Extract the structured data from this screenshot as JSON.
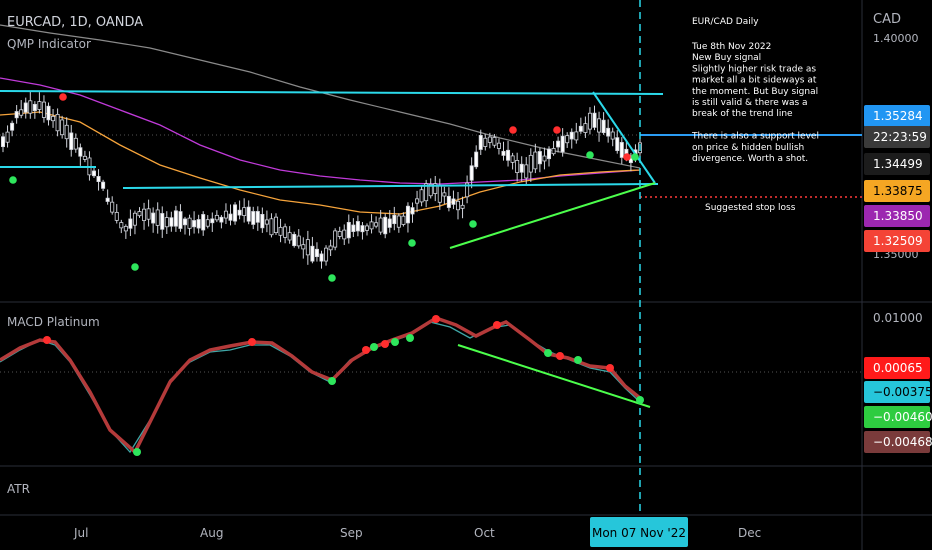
{
  "header": {
    "symbol": "EURCAD, 1D, OANDA",
    "indicator": "QMP Indicator"
  },
  "currency": "CAD",
  "colors": {
    "background": "#000000",
    "cyan_line": "#2bd9ea",
    "green_trend": "#4cff4c",
    "orange_ma": "#f5a33b",
    "purple_ma": "#c03ad9",
    "gray_ma": "#8a8a8a",
    "macd_red": "#b43a3a",
    "macd_teal": "#3fa6a6",
    "signal_up": "#2ee65c",
    "signal_down": "#ff2e2e",
    "stop_line": "#ff3b3b"
  },
  "chart_data": {
    "type": "candlestick",
    "title": "EURCAD, 1D, OANDA",
    "x_ticks": [
      "Jul",
      "Aug",
      "Sep",
      "Oct",
      "Dec"
    ],
    "x_highlight": "Mon 07 Nov '22",
    "y_ticks_price": [
      "1.40000",
      "1.35000"
    ],
    "price_labels": [
      {
        "value": "1.35284",
        "color": "#2196f3"
      },
      {
        "value": "22:23:59",
        "color": "#3a3a3a"
      },
      {
        "value": "1.34499",
        "color": "#1c1c1c"
      },
      {
        "value": "1.33875",
        "color": "#f5a623"
      },
      {
        "value": "1.33850",
        "color": "#9c27b0"
      },
      {
        "value": "1.32509",
        "color": "#f44336"
      }
    ],
    "macd_panel": {
      "title": "MACD Platinum",
      "y_tick": "0.01000",
      "labels": [
        {
          "value": "0.00065",
          "color": "#ff1a1a"
        },
        {
          "value": "−0.00375",
          "color": "#26c6da"
        },
        {
          "value": "−0.00460",
          "color": "#2ecc40"
        },
        {
          "value": "−0.00468",
          "color": "#7a3b3b"
        }
      ]
    },
    "atr_panel": {
      "title": "ATR"
    }
  },
  "annotation": {
    "title": "EUR/CAD Daily",
    "lines": [
      "Tue 8th Nov 2022",
      "New Buy signal",
      "Slightly higher risk trade as",
      "market all a bit sideways at",
      "the moment. But Buy signal",
      "is still valid & there was a",
      "break of the trend line",
      "",
      "There is also a support level",
      "on price & hidden bullish",
      "divergence. Worth a shot."
    ],
    "stop_label": "Suggested stop loss"
  }
}
